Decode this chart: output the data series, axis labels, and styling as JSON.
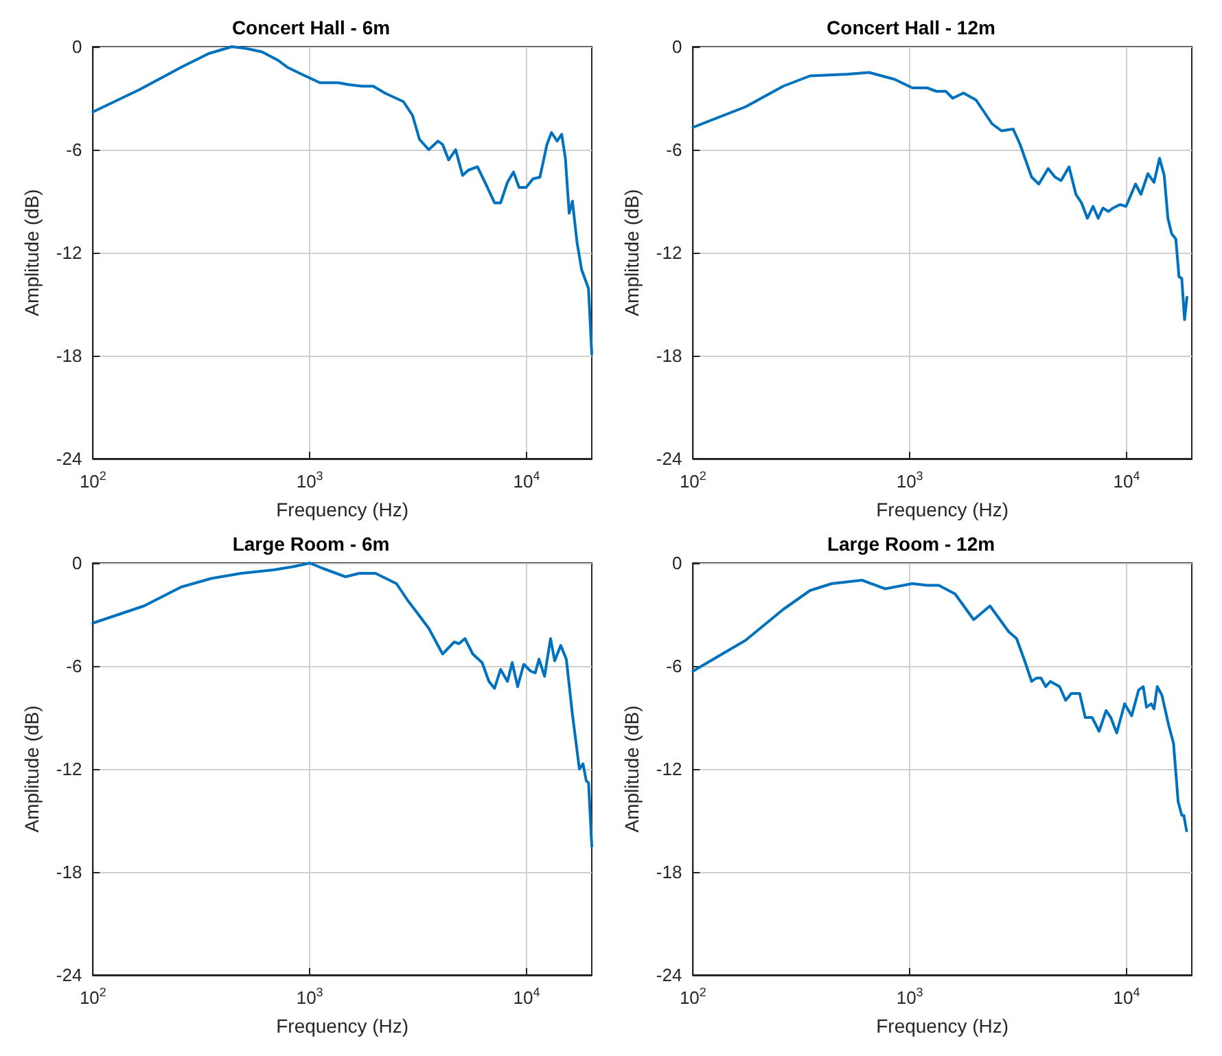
{
  "chart_data": [
    {
      "type": "line",
      "title": "Concert Hall - 6m",
      "xlabel": "Frequency (Hz)",
      "ylabel": "Amplitude (dB)",
      "log": "x",
      "grid": true,
      "marker": "none",
      "line_style": "solid",
      "xlim": [
        100,
        20000
      ],
      "ylim": [
        -24,
        0
      ],
      "xticks": [
        {
          "value": 100,
          "label": "10$^{2}$"
        },
        {
          "value": 1000,
          "label": "10$^{3}$"
        },
        {
          "value": 10000,
          "label": "10$^{4}$"
        }
      ],
      "yticks": [
        -24,
        -18,
        -12,
        -6,
        0
      ],
      "x": [
        100,
        164,
        255,
        342,
        437,
        507,
        602,
        716,
        789,
        916,
        1114,
        1355,
        1496,
        1734,
        1963,
        2220,
        2704,
        2980,
        3209,
        3540,
        3908,
        4103,
        4375,
        4710,
        5073,
        5379,
        5938,
        6490,
        7123,
        7590,
        8168,
        8710,
        9240,
        9950,
        10710,
        11530,
        12420,
        13040,
        13840,
        14530,
        15110,
        15730,
        16280,
        17100,
        17960,
        18580,
        19320,
        20000
      ],
      "series": [
        {
          "color": "#0072bd",
          "values": [
            -3.8,
            -2.5,
            -1.2,
            -0.4,
            0,
            -0.1,
            -0.3,
            -0.8,
            -1.2,
            -1.6,
            -2.1,
            -2.1,
            -2.2,
            -2.3,
            -2.3,
            -2.7,
            -3.2,
            -4,
            -5.4,
            -6,
            -5.5,
            -5.7,
            -6.6,
            -6,
            -7.5,
            -7.2,
            -7,
            -8,
            -9.1,
            -9.1,
            -7.9,
            -7.3,
            -8.2,
            -8.2,
            -7.7,
            -7.6,
            -5.7,
            -5,
            -5.5,
            -5.1,
            -6.5,
            -9.7,
            -9,
            -11.4,
            -13,
            -13.5,
            -14.1,
            -17.9
          ]
        }
      ]
    },
    {
      "type": "line",
      "title": "Concert Hall - 12m",
      "xlabel": "Frequency (Hz)",
      "ylabel": "Amplitude (dB)",
      "log": "x",
      "grid": true,
      "marker": "none",
      "line_style": "solid",
      "xlim": [
        100,
        20000
      ],
      "ylim": [
        -24,
        0
      ],
      "xticks": [
        {
          "value": 100,
          "label": "10$^{2}$"
        },
        {
          "value": 1000,
          "label": "10$^{3}$"
        },
        {
          "value": 10000,
          "label": "10$^{4}$"
        }
      ],
      "yticks": [
        -24,
        -18,
        -12,
        -6,
        0
      ],
      "x": [
        100,
        175,
        261,
        347,
        520,
        649,
        851,
        1028,
        1203,
        1328,
        1466,
        1579,
        1769,
        2020,
        2400,
        2650,
        3000,
        3230,
        3650,
        3940,
        4350,
        4680,
        4990,
        5430,
        5840,
        6200,
        6600,
        7010,
        7400,
        7780,
        8250,
        8660,
        9330,
        9950,
        11000,
        11650,
        12550,
        13390,
        14200,
        14920,
        15520,
        16150,
        16880,
        17460,
        17980,
        18520,
        18990
      ],
      "series": [
        {
          "color": "#0072bd",
          "values": [
            -4.7,
            -3.5,
            -2.3,
            -1.7,
            -1.6,
            -1.5,
            -1.9,
            -2.4,
            -2.4,
            -2.6,
            -2.6,
            -3,
            -2.7,
            -3.1,
            -4.5,
            -4.9,
            -4.8,
            -5.7,
            -7.6,
            -8,
            -7.1,
            -7.6,
            -7.8,
            -7,
            -8.6,
            -9.1,
            -10,
            -9.3,
            -10,
            -9.4,
            -9.6,
            -9.4,
            -9.2,
            -9.3,
            -8,
            -8.6,
            -7.4,
            -7.9,
            -6.5,
            -7.5,
            -10,
            -10.9,
            -11.2,
            -13.4,
            -13.5,
            -15.9,
            -14.6
          ]
        }
      ]
    },
    {
      "type": "line",
      "title": "Large Room - 6m",
      "xlabel": "Frequency (Hz)",
      "ylabel": "Amplitude (dB)",
      "log": "x",
      "grid": true,
      "marker": "none",
      "line_style": "solid",
      "xlim": [
        100,
        20000
      ],
      "ylim": [
        -24,
        0
      ],
      "xticks": [
        {
          "value": 100,
          "label": "10$^{2}$"
        },
        {
          "value": 1000,
          "label": "10$^{3}$"
        },
        {
          "value": 10000,
          "label": "10$^{4}$"
        }
      ],
      "yticks": [
        -24,
        -18,
        -12,
        -6,
        0
      ],
      "x": [
        100,
        172,
        255,
        351,
        483,
        681,
        850,
        1000,
        1142,
        1462,
        1694,
        2011,
        2512,
        2840,
        3130,
        3540,
        4100,
        4640,
        4880,
        5200,
        5650,
        6240,
        6710,
        7120,
        7590,
        8170,
        8590,
        9100,
        9710,
        10450,
        10970,
        11420,
        12110,
        12910,
        13490,
        14380,
        15260,
        16280,
        17530,
        18230,
        18870,
        19330,
        20000
      ],
      "series": [
        {
          "color": "#0072bd",
          "values": [
            -3.5,
            -2.5,
            -1.4,
            -0.9,
            -0.6,
            -0.4,
            -0.2,
            0,
            -0.3,
            -0.8,
            -0.6,
            -0.6,
            -1.2,
            -2.2,
            -2.9,
            -3.8,
            -5.3,
            -4.6,
            -4.7,
            -4.4,
            -5.3,
            -5.8,
            -6.9,
            -7.3,
            -6.2,
            -6.9,
            -5.8,
            -7.2,
            -5.9,
            -6.3,
            -6.4,
            -5.6,
            -6.6,
            -4.4,
            -5.7,
            -4.8,
            -5.6,
            -8.8,
            -12,
            -11.7,
            -12.7,
            -12.8,
            -16.5
          ]
        }
      ]
    },
    {
      "type": "line",
      "title": "Large Room - 12m",
      "xlabel": "Frequency (Hz)",
      "ylabel": "Amplitude (dB)",
      "log": "x",
      "grid": true,
      "marker": "none",
      "line_style": "solid",
      "xlim": [
        100,
        20000
      ],
      "ylim": [
        -24,
        0
      ],
      "xticks": [
        {
          "value": 100,
          "label": "10$^{2}$"
        },
        {
          "value": 1000,
          "label": "10$^{3}$"
        },
        {
          "value": 10000,
          "label": "10$^{4}$"
        }
      ],
      "yticks": [
        -24,
        -18,
        -12,
        -6,
        0
      ],
      "x": [
        100,
        175,
        261,
        347,
        437,
        602,
        771,
        1028,
        1203,
        1362,
        1618,
        1972,
        2345,
        2860,
        3110,
        3390,
        3650,
        3840,
        4030,
        4240,
        4450,
        4910,
        5240,
        5560,
        6080,
        6450,
        6940,
        7470,
        8050,
        8460,
        9010,
        9800,
        10560,
        11370,
        11940,
        12360,
        12990,
        13390,
        13860,
        14560,
        15680,
        16470,
        17300,
        17980,
        18370,
        18920
      ],
      "series": [
        {
          "color": "#0072bd",
          "values": [
            -6.3,
            -4.5,
            -2.7,
            -1.6,
            -1.2,
            -1,
            -1.5,
            -1.2,
            -1.3,
            -1.3,
            -1.8,
            -3.3,
            -2.5,
            -4,
            -4.4,
            -5.7,
            -6.9,
            -6.7,
            -6.7,
            -7.2,
            -6.9,
            -7.2,
            -8,
            -7.6,
            -7.6,
            -9,
            -9,
            -9.8,
            -8.6,
            -9,
            -9.9,
            -8.2,
            -8.9,
            -7.4,
            -7.2,
            -8.4,
            -8.2,
            -8.5,
            -7.2,
            -7.7,
            -9.5,
            -10.5,
            -13.9,
            -14.7,
            -14.7,
            -15.6
          ]
        }
      ]
    }
  ]
}
